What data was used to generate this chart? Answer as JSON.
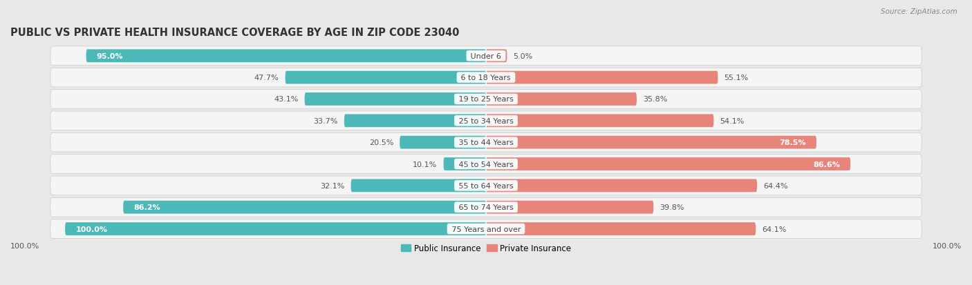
{
  "title": "PUBLIC VS PRIVATE HEALTH INSURANCE COVERAGE BY AGE IN ZIP CODE 23040",
  "source": "Source: ZipAtlas.com",
  "categories": [
    "Under 6",
    "6 to 18 Years",
    "19 to 25 Years",
    "25 to 34 Years",
    "35 to 44 Years",
    "45 to 54 Years",
    "55 to 64 Years",
    "65 to 74 Years",
    "75 Years and over"
  ],
  "public_values": [
    95.0,
    47.7,
    43.1,
    33.7,
    20.5,
    10.1,
    32.1,
    86.2,
    100.0
  ],
  "private_values": [
    5.0,
    55.1,
    35.8,
    54.1,
    78.5,
    86.6,
    64.4,
    39.8,
    64.1
  ],
  "public_color": "#4db8b8",
  "private_color": "#e8857a",
  "bar_height": 0.6,
  "xlim": 100,
  "bg_color": "#e8e8e8",
  "row_bg_color": "#f5f5f5",
  "title_fontsize": 10.5,
  "label_fontsize": 8,
  "value_fontsize": 8,
  "legend_fontsize": 8.5,
  "source_fontsize": 7.5,
  "public_label_inside_threshold": 85,
  "private_label_inside_threshold": 75
}
